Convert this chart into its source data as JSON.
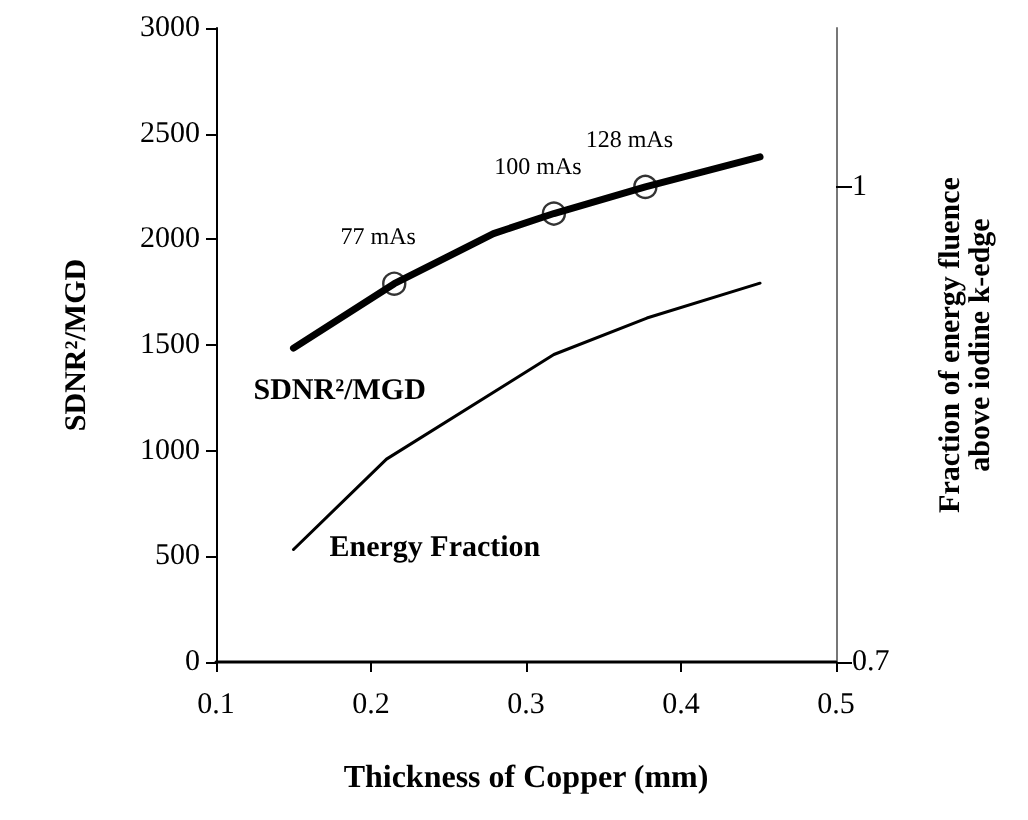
{
  "chart_data": {
    "type": "line",
    "xlabel": "Thickness of Copper (mm)",
    "ylabel": "SDNR²/MGD",
    "y2label": "Fraction of energy fluence\nabove iodine k-edge",
    "xlim": [
      0.1,
      0.5
    ],
    "xticks": [
      0.1,
      0.2,
      0.3,
      0.4,
      0.5
    ],
    "ylim": [
      0,
      3000
    ],
    "yticks": [
      0,
      500,
      1000,
      1500,
      2000,
      2500,
      3000
    ],
    "y2lim": [
      0.7,
      1.1
    ],
    "y2ticks": [
      0.7,
      1
    ],
    "grid": false,
    "line_style": "solid",
    "series": [
      {
        "name": "SDNR²/MGD",
        "color": "#000000",
        "marker": "none",
        "x": [
          0.15,
          0.215,
          0.279,
          0.318,
          0.377,
          0.451
        ],
        "values": [
          1485,
          1790,
          2027,
          2122,
          2248,
          2390
        ]
      },
      {
        "name": "Energy Fraction",
        "color": "#000000",
        "marker": "none",
        "axis": "y2",
        "x": [
          0.15,
          0.21,
          0.318,
          0.378,
          0.451
        ],
        "values": [
          0.771,
          0.828,
          0.894,
          0.917,
          0.939
        ]
      },
      {
        "type": "scatter",
        "color": "#000000",
        "marker": "circle",
        "x": [
          0.215,
          0.318,
          0.377
        ],
        "values": [
          1790,
          2122,
          2248
        ]
      }
    ],
    "annotations": [
      {
        "text": "77 mAs",
        "x": 0.215,
        "y": 1790
      },
      {
        "text": "100 mAs",
        "x": 0.318,
        "y": 2122
      },
      {
        "text": "128 mAs",
        "x": 0.377,
        "y": 2248
      }
    ]
  }
}
